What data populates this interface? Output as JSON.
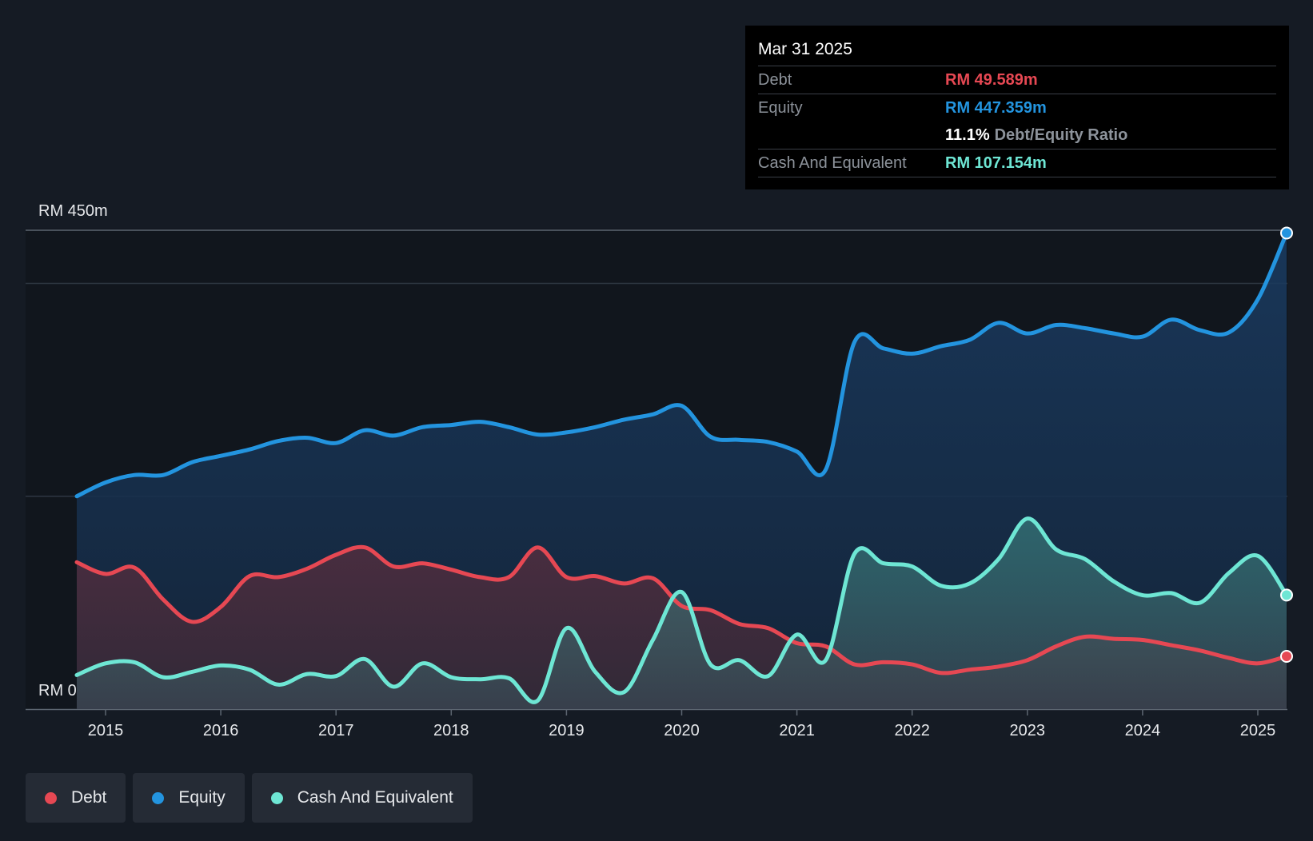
{
  "tooltip": {
    "date": "Mar 31 2025",
    "debt_label": "Debt",
    "debt_value": "RM 49.589m",
    "equity_label": "Equity",
    "equity_value": "RM 447.359m",
    "ratio_value": "11.1%",
    "ratio_label": "Debt/Equity Ratio",
    "cash_label": "Cash And Equivalent",
    "cash_value": "RM 107.154m"
  },
  "legend": [
    {
      "label": "Debt",
      "color": "#e64853"
    },
    {
      "label": "Equity",
      "color": "#2394df"
    },
    {
      "label": "Cash And Equivalent",
      "color": "#6ee6d4"
    }
  ],
  "chart_data": {
    "type": "area",
    "title": "",
    "xlabel": "",
    "ylabel": "",
    "y_top_label": "RM 450m",
    "y_bottom_label": "RM 0",
    "ylim": [
      0,
      450
    ],
    "xlim": [
      2014.75,
      2025.25
    ],
    "x_ticks": [
      2015,
      2016,
      2017,
      2018,
      2019,
      2020,
      2021,
      2022,
      2023,
      2024,
      2025
    ],
    "x_tick_labels": [
      "2015",
      "2016",
      "2017",
      "2018",
      "2019",
      "2020",
      "2021",
      "2022",
      "2023",
      "2024",
      "2025"
    ],
    "gridlines": [
      400,
      200
    ],
    "tooltip_x": 2025.25,
    "series": [
      {
        "name": "Equity",
        "color": "#2394df",
        "points": [
          [
            2014.75,
            200
          ],
          [
            2015.0,
            213
          ],
          [
            2015.25,
            220
          ],
          [
            2015.5,
            220
          ],
          [
            2015.75,
            232
          ],
          [
            2016.0,
            238
          ],
          [
            2016.25,
            244
          ],
          [
            2016.5,
            252
          ],
          [
            2016.75,
            255
          ],
          [
            2017.0,
            250
          ],
          [
            2017.25,
            262
          ],
          [
            2017.5,
            257
          ],
          [
            2017.75,
            265
          ],
          [
            2018.0,
            267
          ],
          [
            2018.25,
            270
          ],
          [
            2018.5,
            265
          ],
          [
            2018.75,
            258
          ],
          [
            2019.0,
            260
          ],
          [
            2019.25,
            265
          ],
          [
            2019.5,
            272
          ],
          [
            2019.75,
            277
          ],
          [
            2020.0,
            285
          ],
          [
            2020.25,
            256
          ],
          [
            2020.5,
            253
          ],
          [
            2020.75,
            251
          ],
          [
            2021.0,
            242
          ],
          [
            2021.25,
            225
          ],
          [
            2021.5,
            345
          ],
          [
            2021.75,
            339
          ],
          [
            2022.0,
            334
          ],
          [
            2022.25,
            341
          ],
          [
            2022.5,
            347
          ],
          [
            2022.75,
            363
          ],
          [
            2023.0,
            353
          ],
          [
            2023.25,
            361
          ],
          [
            2023.5,
            358
          ],
          [
            2023.75,
            353
          ],
          [
            2024.0,
            350
          ],
          [
            2024.25,
            366
          ],
          [
            2024.5,
            356
          ],
          [
            2024.75,
            354
          ],
          [
            2025.0,
            385
          ],
          [
            2025.25,
            447.359
          ]
        ]
      },
      {
        "name": "Debt",
        "color": "#e64853",
        "points": [
          [
            2014.75,
            138
          ],
          [
            2015.0,
            127
          ],
          [
            2015.25,
            133
          ],
          [
            2015.5,
            103
          ],
          [
            2015.75,
            82
          ],
          [
            2016.0,
            96
          ],
          [
            2016.25,
            125
          ],
          [
            2016.5,
            124
          ],
          [
            2016.75,
            132
          ],
          [
            2017.0,
            145
          ],
          [
            2017.25,
            152
          ],
          [
            2017.5,
            134
          ],
          [
            2017.75,
            137
          ],
          [
            2018.0,
            131
          ],
          [
            2018.25,
            124
          ],
          [
            2018.5,
            124
          ],
          [
            2018.75,
            152
          ],
          [
            2019.0,
            124
          ],
          [
            2019.25,
            125
          ],
          [
            2019.5,
            118
          ],
          [
            2019.75,
            123
          ],
          [
            2020.0,
            97
          ],
          [
            2020.25,
            93
          ],
          [
            2020.5,
            80
          ],
          [
            2020.75,
            76
          ],
          [
            2021.0,
            62
          ],
          [
            2021.25,
            59
          ],
          [
            2021.5,
            42
          ],
          [
            2021.75,
            44
          ],
          [
            2022.0,
            42
          ],
          [
            2022.25,
            34
          ],
          [
            2022.5,
            37
          ],
          [
            2022.75,
            40
          ],
          [
            2023.0,
            46
          ],
          [
            2023.25,
            59
          ],
          [
            2023.5,
            68
          ],
          [
            2023.75,
            66
          ],
          [
            2024.0,
            65
          ],
          [
            2024.25,
            60
          ],
          [
            2024.5,
            55
          ],
          [
            2024.75,
            48
          ],
          [
            2025.0,
            43
          ],
          [
            2025.25,
            49.589
          ]
        ]
      },
      {
        "name": "Cash And Equivalent",
        "color": "#6ee6d4",
        "points": [
          [
            2014.75,
            32
          ],
          [
            2015.0,
            43
          ],
          [
            2015.25,
            44
          ],
          [
            2015.5,
            30
          ],
          [
            2015.75,
            35
          ],
          [
            2016.0,
            41
          ],
          [
            2016.25,
            37
          ],
          [
            2016.5,
            23
          ],
          [
            2016.75,
            33
          ],
          [
            2017.0,
            31
          ],
          [
            2017.25,
            47
          ],
          [
            2017.5,
            21
          ],
          [
            2017.75,
            43
          ],
          [
            2018.0,
            30
          ],
          [
            2018.25,
            28
          ],
          [
            2018.5,
            29
          ],
          [
            2018.75,
            8
          ],
          [
            2019.0,
            76
          ],
          [
            2019.25,
            35
          ],
          [
            2019.5,
            16
          ],
          [
            2019.75,
            65
          ],
          [
            2020.0,
            110
          ],
          [
            2020.25,
            42
          ],
          [
            2020.5,
            46
          ],
          [
            2020.75,
            31
          ],
          [
            2021.0,
            70
          ],
          [
            2021.25,
            46
          ],
          [
            2021.5,
            146
          ],
          [
            2021.75,
            137
          ],
          [
            2022.0,
            134
          ],
          [
            2022.25,
            116
          ],
          [
            2022.5,
            118
          ],
          [
            2022.75,
            141
          ],
          [
            2023.0,
            179
          ],
          [
            2023.25,
            150
          ],
          [
            2023.5,
            141
          ],
          [
            2023.75,
            120
          ],
          [
            2024.0,
            107
          ],
          [
            2024.25,
            109
          ],
          [
            2024.5,
            100
          ],
          [
            2024.75,
            128
          ],
          [
            2025.0,
            144
          ],
          [
            2025.25,
            107.154
          ]
        ]
      }
    ]
  }
}
